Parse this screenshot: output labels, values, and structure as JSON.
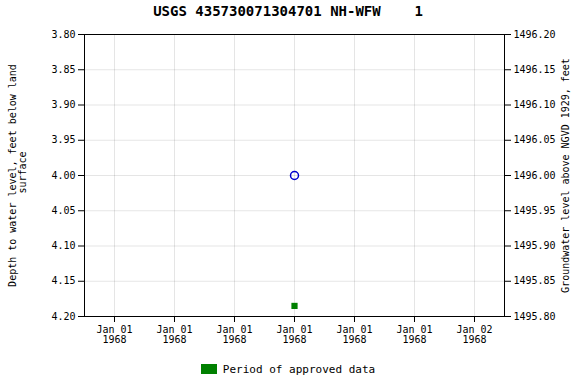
{
  "chart_data": {
    "type": "scatter",
    "title": "USGS 435730071304701 NH-WFW    1",
    "ylabel": "Depth to water level, feet below land\n surface",
    "y2label": "Groundwater level above NGVD 1929, feet",
    "categories": [
      "Jan 01\n1968",
      "Jan 01\n1968",
      "Jan 01\n1968",
      "Jan 01\n1968",
      "Jan 01\n1968",
      "Jan 01\n1968",
      "Jan 02\n1968"
    ],
    "series": [
      {
        "color": "#0000cc",
        "marker": "circle",
        "values": [
          null,
          null,
          null,
          4.0,
          null,
          null,
          null
        ]
      },
      {
        "name": "Period of approved data",
        "color": "#008000",
        "marker": "square",
        "values": [
          null,
          null,
          null,
          4.185,
          null,
          null,
          null
        ]
      }
    ],
    "ylim": [
      4.2,
      3.8
    ],
    "yticks": [
      {
        "value": 3.8,
        "label": "3.80"
      },
      {
        "value": 3.85,
        "label": "3.85"
      },
      {
        "value": 3.9,
        "label": "3.90"
      },
      {
        "value": 3.95,
        "label": "3.95"
      },
      {
        "value": 4.0,
        "label": "4.00"
      },
      {
        "value": 4.05,
        "label": "4.05"
      },
      {
        "value": 4.1,
        "label": "4.10"
      },
      {
        "value": 4.15,
        "label": "4.15"
      },
      {
        "value": 4.2,
        "label": "4.20"
      }
    ],
    "y2lim": [
      1495.8,
      1496.2
    ],
    "y2ticks": [
      {
        "value": 1495.8,
        "label": "1495.80"
      },
      {
        "value": 1495.85,
        "label": "1495.85"
      },
      {
        "value": 1495.9,
        "label": "1495.90"
      },
      {
        "value": 1495.95,
        "label": "1495.95"
      },
      {
        "value": 1496.0,
        "label": "1496.00"
      },
      {
        "value": 1496.05,
        "label": "1496.05"
      },
      {
        "value": 1496.1,
        "label": "1496.10"
      },
      {
        "value": 1496.15,
        "label": "1496.15"
      },
      {
        "value": 1496.2,
        "label": "1496.20"
      }
    ],
    "grid": true,
    "legend": "bottom"
  }
}
